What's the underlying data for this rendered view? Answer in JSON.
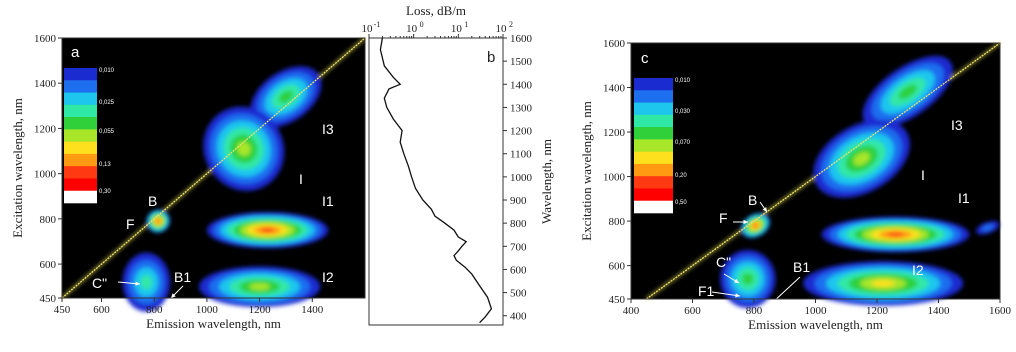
{
  "chart_data": [
    {
      "type": "heatmap",
      "panel": "a",
      "xlabel": "Emission wavelength, nm",
      "ylabel": "Excitation wavelength, nm",
      "x_ticks": [
        "450",
        "600",
        "800",
        "1000",
        "1200",
        "1400"
      ],
      "y_ticks": [
        "450",
        "600",
        "800",
        "1000",
        "1200",
        "1400",
        "1600"
      ],
      "xlim": [
        450,
        1600
      ],
      "ylim": [
        450,
        1600
      ],
      "colorscale": [
        "0,010",
        "0,025",
        "0,055",
        "0,13",
        "0,30"
      ],
      "colors": [
        "#1a2cd0",
        "#1e6ef0",
        "#1ec6ee",
        "#30e8a6",
        "#2fd03a",
        "#a8e62a",
        "#ffe01e",
        "#ff9a12",
        "#ff3a12",
        "#ff0000",
        "#ffffff"
      ],
      "regions": [
        "a",
        "B",
        "F",
        "C\"",
        "B1",
        "I1",
        "I2",
        "I",
        "I3"
      ]
    },
    {
      "type": "line",
      "panel": "b",
      "xlabel": "Loss, dB/m",
      "ylabel": "Wavelength, nm",
      "x_scale": "log",
      "x_ticks": [
        "10",
        "-1",
        "10",
        "0",
        "10",
        "1",
        "10",
        "2"
      ],
      "y_ticks": [
        "400",
        "500",
        "600",
        "700",
        "800",
        "900",
        "1000",
        "1100",
        "1200",
        "1300",
        "1400",
        "1500",
        "1600"
      ],
      "xlim": [
        0.1,
        100
      ],
      "ylim": [
        360,
        1600
      ],
      "x": [
        0.2,
        0.18,
        0.22,
        0.35,
        0.5,
        0.28,
        0.22,
        0.25,
        0.35,
        0.55,
        0.5,
        0.6,
        0.75,
        0.9,
        1.1,
        1.6,
        2.5,
        3.0,
        5.0,
        8.0,
        10,
        15,
        12,
        10,
        8,
        9,
        14,
        20,
        30,
        45,
        55,
        40,
        30
      ],
      "y": [
        1600,
        1550,
        1480,
        1430,
        1400,
        1380,
        1340,
        1300,
        1250,
        1200,
        1150,
        1100,
        1050,
        1000,
        950,
        900,
        860,
        830,
        800,
        770,
        740,
        720,
        700,
        680,
        660,
        640,
        610,
        580,
        530,
        480,
        430,
        395,
        370
      ],
      "regions": [
        "b"
      ]
    },
    {
      "type": "heatmap",
      "panel": "c",
      "xlabel": "Emission wavelength, nm",
      "ylabel": "Excitation wavelength, nm",
      "x_ticks": [
        "400",
        "600",
        "800",
        "1000",
        "1200",
        "1400",
        "1600"
      ],
      "y_ticks": [
        "450",
        "600",
        "800",
        "1000",
        "1200",
        "1400",
        "1600"
      ],
      "xlim": [
        400,
        1600
      ],
      "ylim": [
        450,
        1600
      ],
      "colorscale": [
        "0,010",
        "0,030",
        "0,070",
        "0,20",
        "0,50"
      ],
      "colors": [
        "#1a2cd0",
        "#1e6ef0",
        "#1ec6ee",
        "#30e8a6",
        "#2fd03a",
        "#a8e62a",
        "#ffe01e",
        "#ff9a12",
        "#ff3a12",
        "#ff0000",
        "#ffffff"
      ],
      "regions": [
        "c",
        "B",
        "F",
        "C\"",
        "F1",
        "B1",
        "I1",
        "I2",
        "I",
        "I3"
      ]
    }
  ]
}
